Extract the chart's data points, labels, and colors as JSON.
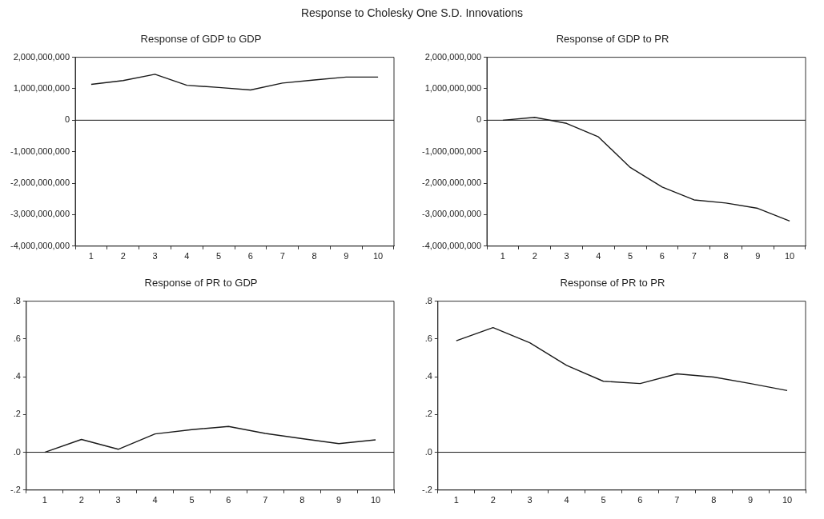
{
  "chart_data": [
    {
      "type": "line",
      "title": "Response to Cholesky One S.D. Innovations",
      "subtitle": "Response of GDP to GDP",
      "categories": [
        "1",
        "2",
        "3",
        "4",
        "5",
        "6",
        "7",
        "8",
        "9",
        "10"
      ],
      "series": [
        {
          "color": "#1a1a1a",
          "values": [
            1140000000,
            1260000000,
            1460000000,
            1110000000,
            1040000000,
            960000000,
            1180000000,
            1280000000,
            1370000000,
            1370000000
          ]
        }
      ],
      "ylim": [
        -4000000000,
        2000000000
      ],
      "yticks": [
        {
          "value": -4000000000,
          "label": "-4,000,000,000"
        },
        {
          "value": -3000000000,
          "label": "-3,000,000,000"
        },
        {
          "value": -2000000000,
          "label": "-2,000,000,000"
        },
        {
          "value": -1000000000,
          "label": "-1,000,000,000"
        },
        0,
        {
          "value": 1000000000,
          "label": "1,000,000,000"
        },
        {
          "value": 2000000000,
          "label": "2,000,000,000"
        }
      ],
      "ref_lines": [
        {
          "axis": "y",
          "value": 0,
          "color": "#1a1a1a"
        }
      ],
      "grid": false,
      "legend": false,
      "marker": "none",
      "line_style": "solid"
    },
    {
      "type": "line",
      "title": "Response of GDP to PR",
      "categories": [
        "1",
        "2",
        "3",
        "4",
        "5",
        "6",
        "7",
        "8",
        "9",
        "10"
      ],
      "series": [
        {
          "color": "#1a1a1a",
          "values": [
            0,
            90000000,
            -100000000,
            -530000000,
            -1500000000,
            -2120000000,
            -2530000000,
            -2630000000,
            -2800000000,
            -3200000000
          ]
        }
      ],
      "ylim": [
        -4000000000,
        2000000000
      ],
      "yticks": [
        {
          "value": -4000000000,
          "label": "-4,000,000,000"
        },
        {
          "value": -3000000000,
          "label": "-3,000,000,000"
        },
        {
          "value": -2000000000,
          "label": "-2,000,000,000"
        },
        {
          "value": -1000000000,
          "label": "-1,000,000,000"
        },
        0,
        {
          "value": 1000000000,
          "label": "1,000,000,000"
        },
        {
          "value": 2000000000,
          "label": "2,000,000,000"
        }
      ],
      "ref_lines": [
        {
          "axis": "y",
          "value": 0,
          "color": "#1a1a1a"
        }
      ],
      "grid": false,
      "legend": false,
      "marker": "none",
      "line_style": "solid"
    },
    {
      "type": "line",
      "title": "Response of PR to GDP",
      "categories": [
        "1",
        "2",
        "3",
        "4",
        "5",
        "6",
        "7",
        "8",
        "9",
        "10"
      ],
      "series": [
        {
          "color": "#1a1a1a",
          "values": [
            0,
            0.068,
            0.016,
            0.097,
            0.12,
            0.137,
            0.1,
            0.072,
            0.046,
            0.066
          ]
        }
      ],
      "ylim": [
        -0.2,
        0.8
      ],
      "yticks": [
        {
          "value": -0.2,
          "label": "-.2"
        },
        {
          "value": 0,
          "label": ".0"
        },
        {
          "value": 0.2,
          "label": ".2"
        },
        {
          "value": 0.4,
          "label": ".4"
        },
        {
          "value": 0.6,
          "label": ".6"
        },
        {
          "value": 0.8,
          "label": ".8"
        }
      ],
      "ref_lines": [
        {
          "axis": "y",
          "value": 0,
          "color": "#1a1a1a"
        }
      ],
      "grid": false,
      "legend": false,
      "marker": "none",
      "line_style": "solid"
    },
    {
      "type": "line",
      "title": "Response of PR to PR",
      "categories": [
        "1",
        "2",
        "3",
        "4",
        "5",
        "6",
        "7",
        "8",
        "9",
        "10"
      ],
      "series": [
        {
          "color": "#1a1a1a",
          "values": [
            0.59,
            0.66,
            0.58,
            0.46,
            0.376,
            0.364,
            0.415,
            0.398,
            0.364,
            0.327
          ]
        }
      ],
      "ylim": [
        -0.2,
        0.8
      ],
      "yticks": [
        {
          "value": -0.2,
          "label": "-.2"
        },
        {
          "value": 0,
          "label": ".0"
        },
        {
          "value": 0.2,
          "label": ".2"
        },
        {
          "value": 0.4,
          "label": ".4"
        },
        {
          "value": 0.6,
          "label": ".6"
        },
        {
          "value": 0.8,
          "label": ".8"
        }
      ],
      "ref_lines": [
        {
          "axis": "y",
          "value": 0,
          "color": "#1a1a1a"
        }
      ],
      "grid": false,
      "legend": false,
      "marker": "none",
      "line_style": "solid"
    }
  ]
}
